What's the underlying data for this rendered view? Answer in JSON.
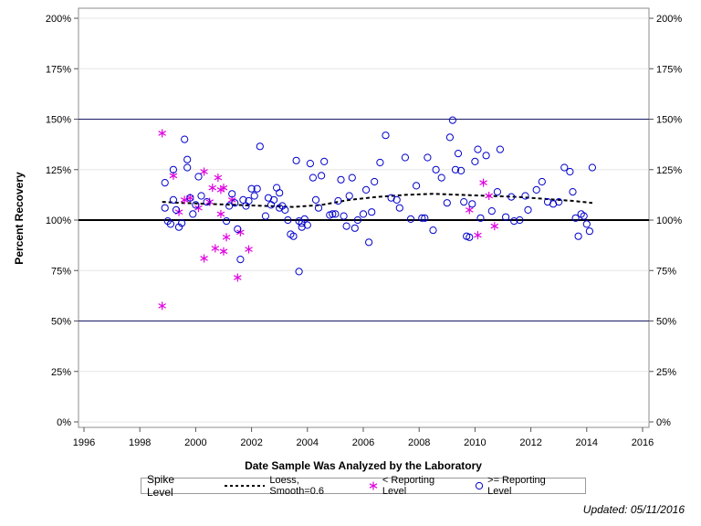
{
  "chart_data": {
    "type": "scatter",
    "xlabel": "Date Sample Was Analyzed by the Laboratory",
    "ylabel": "Percent Recovery",
    "xlim": [
      1996,
      2016
    ],
    "ylim": [
      0,
      200
    ],
    "x_ticks": [
      1996,
      1998,
      2000,
      2002,
      2004,
      2006,
      2008,
      2010,
      2012,
      2014,
      2016
    ],
    "y_ticks": [
      "0%",
      "25%",
      "50%",
      "75%",
      "100%",
      "125%",
      "150%",
      "175%",
      "200%"
    ],
    "y_tick_values": [
      0,
      25,
      50,
      75,
      100,
      125,
      150,
      175,
      200
    ],
    "reference_lines": [
      {
        "y": 100,
        "style": "thick"
      },
      {
        "y": 50,
        "style": "thin"
      },
      {
        "y": 150,
        "style": "thin"
      }
    ],
    "grid": true,
    "legend_title": "Spike Level",
    "legend_position": "bottom",
    "series": [
      {
        "name": "Loess, Smooth=0.6",
        "kind": "line",
        "style": "dashed",
        "color": "#000000",
        "x": [
          1998.8,
          1999.5,
          2000.5,
          2001.5,
          2002.5,
          2003.5,
          2004.5,
          2005.5,
          2006.5,
          2007.5,
          2008.5,
          2009.5,
          2010.5,
          2011.5,
          2012.5,
          2013.5,
          2014.2
        ],
        "y": [
          109,
          108.5,
          108,
          107.5,
          107,
          106.5,
          107.5,
          110,
          111.5,
          112.5,
          113,
          112.5,
          112,
          111.5,
          110.5,
          109.5,
          108.5
        ]
      },
      {
        "name": "< Reporting Level",
        "kind": "scatter",
        "marker": "asterisk",
        "color": "#e000e0",
        "x": [
          1998.8,
          1998.8,
          1999.2,
          1999.4,
          1999.6,
          1999.8,
          2000.1,
          2000.3,
          2000.3,
          2000.5,
          2000.6,
          2000.7,
          2000.8,
          2000.9,
          2000.9,
          2001.0,
          2001.0,
          2001.1,
          2001.3,
          2001.5,
          2001.6,
          2001.9,
          2009.8,
          2010.1,
          2010.3,
          2010.5,
          2010.7
        ],
        "y": [
          143,
          57.5,
          122,
          104,
          110,
          111,
          106,
          124,
          81,
          109,
          116,
          86,
          121,
          103,
          115,
          84.5,
          116,
          91.5,
          110,
          71.5,
          94,
          85.5,
          105,
          92.5,
          118.5,
          112,
          97
        ]
      },
      {
        "name": ">= Reporting Level",
        "kind": "scatter",
        "marker": "circle",
        "color": "#0000cc",
        "x": [
          1998.9,
          1998.9,
          1999.0,
          1999.1,
          1999.2,
          1999.2,
          1999.3,
          1999.4,
          1999.5,
          1999.6,
          1999.7,
          1999.7,
          1999.8,
          1999.9,
          2000.0,
          2000.1,
          2000.2,
          2000.4,
          2001.1,
          2001.2,
          2001.3,
          2001.4,
          2001.5,
          2001.6,
          2001.7,
          2001.8,
          2001.9,
          2002.0,
          2002.1,
          2002.2,
          2002.3,
          2002.5,
          2002.6,
          2002.7,
          2002.8,
          2002.9,
          2003.0,
          2003.0,
          2003.1,
          2003.2,
          2003.3,
          2003.4,
          2003.5,
          2003.6,
          2003.7,
          2003.7,
          2003.8,
          2003.8,
          2003.9,
          2004.0,
          2004.1,
          2004.2,
          2004.3,
          2004.4,
          2004.5,
          2004.6,
          2004.8,
          2004.9,
          2005.0,
          2005.1,
          2005.2,
          2005.3,
          2005.4,
          2005.5,
          2005.6,
          2005.7,
          2005.8,
          2006.0,
          2006.1,
          2006.2,
          2006.3,
          2006.4,
          2006.6,
          2006.8,
          2007.0,
          2007.2,
          2007.3,
          2007.5,
          2007.7,
          2007.9,
          2008.1,
          2008.2,
          2008.3,
          2008.5,
          2008.6,
          2008.8,
          2009.0,
          2009.1,
          2009.2,
          2009.3,
          2009.4,
          2009.5,
          2009.6,
          2009.7,
          2009.8,
          2009.9,
          2010.0,
          2010.1,
          2010.2,
          2010.4,
          2010.6,
          2010.8,
          2010.9,
          2011.1,
          2011.3,
          2011.4,
          2011.6,
          2011.8,
          2011.9,
          2012.2,
          2012.4,
          2012.6,
          2012.8,
          2013.0,
          2013.2,
          2013.4,
          2013.5,
          2013.6,
          2013.7,
          2013.8,
          2013.9,
          2014.0,
          2014.1,
          2014.2
        ],
        "y": [
          118.5,
          106,
          99.5,
          98,
          125,
          110,
          105,
          96.5,
          98.5,
          140,
          126,
          130,
          111,
          103,
          107.5,
          121.5,
          112,
          109,
          99.5,
          107,
          113,
          108.5,
          95.5,
          80.5,
          110,
          107,
          109.5,
          115.5,
          112,
          115.5,
          136.5,
          102,
          111,
          107.5,
          110,
          116,
          113.5,
          106,
          107,
          105,
          100,
          93,
          92,
          129.5,
          74.5,
          99.5,
          98.5,
          96.5,
          100.5,
          97.5,
          128,
          121,
          110,
          106,
          122,
          129,
          102.5,
          103,
          103,
          109.5,
          120,
          102,
          97,
          112,
          121,
          96,
          100,
          103,
          115,
          89,
          104,
          119,
          128.5,
          142,
          111,
          110,
          106,
          131,
          100.5,
          117,
          101,
          101,
          131,
          95,
          125,
          121,
          108.5,
          141,
          149.5,
          125,
          133,
          124.5,
          109,
          92,
          91.5,
          108,
          129,
          135,
          101,
          132,
          104.5,
          114,
          135,
          101.5,
          111.5,
          99.5,
          100,
          112,
          105,
          115,
          119,
          109,
          108,
          109,
          126,
          124,
          114,
          101,
          92,
          103,
          102,
          98,
          94.5,
          126
        ]
      }
    ]
  },
  "legend": {
    "title": "Spike Level",
    "loess_label": "Loess, Smooth=0.6",
    "below_label": "< Reporting Level",
    "above_label": ">= Reporting Level"
  },
  "footer": {
    "updated": "Updated: 05/11/2016"
  },
  "colors": {
    "below_marker": "#e000e0",
    "above_marker": "#0000cc",
    "reference_thin": "#1a1a66"
  }
}
